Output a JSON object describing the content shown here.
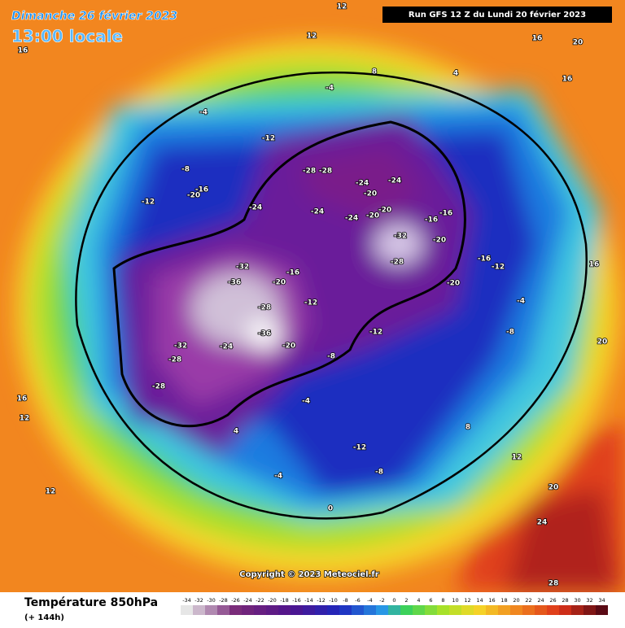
{
  "header": {
    "date": "Dimanche 26 février 2023",
    "time": "13:00 locale",
    "run": "Run GFS 12 Z du Lundi 20 février 2023"
  },
  "map": {
    "copyright": "Copyright © 2023 Meteociel.fr",
    "labels": [
      "-28",
      "-28",
      "-24",
      "-20",
      "-24",
      "-24",
      "-24",
      "-20",
      "-20",
      "-16",
      "-16",
      "-32",
      "-28",
      "-20",
      "-20",
      "-16",
      "-20",
      "-32",
      "-36",
      "-28",
      "-32",
      "-28",
      "-24",
      "-28",
      "-20",
      "-36",
      "-12",
      "-12",
      "-8",
      "-4",
      "-12",
      "-8",
      "-4",
      "0",
      "4",
      "8",
      "12",
      "16",
      "20",
      "16",
      "12",
      "16",
      "12",
      "20",
      "24",
      "28",
      "-4",
      "-4",
      "-8",
      "-12",
      "-12",
      "-20",
      "-24",
      "-16",
      "-8",
      "-4",
      "-12",
      "-16",
      "4",
      "8",
      "12",
      "12",
      "16",
      "20",
      "16"
    ]
  },
  "legend": {
    "title": "Température 850hPa",
    "subtitle": "(+ 144h)",
    "scale": [
      -34,
      -32,
      -30,
      -28,
      -26,
      -24,
      -22,
      -20,
      -18,
      -16,
      -14,
      -12,
      -10,
      -8,
      -6,
      -4,
      -2,
      0,
      2,
      4,
      6,
      8,
      10,
      12,
      14,
      16,
      18,
      20,
      22,
      24,
      26,
      28,
      30,
      32,
      34
    ]
  }
}
